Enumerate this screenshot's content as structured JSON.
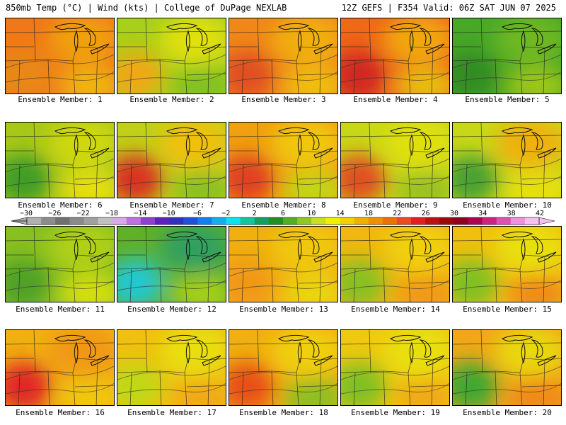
{
  "header": {
    "left": "850mb Temp (°C) | Wind (kts) | College of DuPage NEXLAB",
    "right": "12Z GEFS | F354 Valid: 06Z SAT JUN 07 2025"
  },
  "colorbar": {
    "labels": [
      "−30",
      "−26",
      "−22",
      "−18",
      "−14",
      "−10",
      "−6",
      "−2",
      "2",
      "6",
      "10",
      "14",
      "18",
      "22",
      "26",
      "30",
      "34",
      "38",
      "42"
    ],
    "colors": [
      "#b0b0b0",
      "#8c8c8c",
      "#707070",
      "#8a8a8a",
      "#a0a0a0",
      "#c0c0c0",
      "#d8a8e8",
      "#c070e0",
      "#9040d0",
      "#6020c0",
      "#3030c0",
      "#2050e0",
      "#1080f0",
      "#10b0f0",
      "#10e0f0",
      "#10c8a0",
      "#10a060",
      "#209020",
      "#50b020",
      "#90c820",
      "#c8e020",
      "#f0f000",
      "#f0d000",
      "#f0b000",
      "#f09000",
      "#f07000",
      "#f04820",
      "#e02020",
      "#c01010",
      "#a00808",
      "#900020",
      "#b00050",
      "#d02080",
      "#e050b0",
      "#f090e0",
      "#f8c0f0"
    ]
  },
  "members": [
    {
      "label": "Ensemble Member: 1",
      "colors": [
        "#f07818",
        "#f0a010",
        "#e88818",
        "#f0b810"
      ]
    },
    {
      "label": "Ensemble Member: 2",
      "colors": [
        "#a8d018",
        "#e0e010",
        "#f0a818",
        "#80c020"
      ]
    },
    {
      "label": "Ensemble Member: 3",
      "colors": [
        "#f08818",
        "#f0b010",
        "#e05020",
        "#f0c010"
      ]
    },
    {
      "label": "Ensemble Member: 4",
      "colors": [
        "#f06818",
        "#f0a810",
        "#d02820",
        "#e8c010"
      ]
    },
    {
      "label": "Ensemble Member: 5",
      "colors": [
        "#48a828",
        "#70b820",
        "#308c20",
        "#a0c818"
      ]
    },
    {
      "label": "Ensemble Member: 6",
      "colors": [
        "#a8c818",
        "#d0d810",
        "#409c28",
        "#e8e010"
      ]
    },
    {
      "label": "Ensemble Member: 7",
      "colors": [
        "#c0d018",
        "#f0c010",
        "#d83020",
        "#88c020"
      ]
    },
    {
      "label": "Ensemble Member: 8",
      "colors": [
        "#f0a010",
        "#f0c810",
        "#e04020",
        "#c0d818"
      ]
    },
    {
      "label": "Ensemble Member: 9",
      "colors": [
        "#c8d818",
        "#e0e010",
        "#e05020",
        "#98c020"
      ]
    },
    {
      "label": "Ensemble Member: 10",
      "colors": [
        "#c8d818",
        "#f0b010",
        "#48a030",
        "#e8e010"
      ]
    },
    {
      "label": "Ensemble Member: 11",
      "colors": [
        "#88c020",
        "#b0d018",
        "#50a028",
        "#d8e010"
      ]
    },
    {
      "label": "Ensemble Member: 12",
      "colors": [
        "#60b028",
        "#30a060",
        "#20c8d0",
        "#a8d018"
      ]
    },
    {
      "label": "Ensemble Member: 13",
      "colors": [
        "#f0b010",
        "#f0c810",
        "#f09818",
        "#e8d810"
      ]
    },
    {
      "label": "Ensemble Member: 14",
      "colors": [
        "#f0b810",
        "#f0d010",
        "#88c020",
        "#f09818"
      ]
    },
    {
      "label": "Ensemble Member: 15",
      "colors": [
        "#f0c010",
        "#e8e010",
        "#80c020",
        "#f08818"
      ]
    },
    {
      "label": "Ensemble Member: 16",
      "colors": [
        "#f0b010",
        "#f09818",
        "#e02828",
        "#f0c810"
      ]
    },
    {
      "label": "Ensemble Member: 17",
      "colors": [
        "#f0c010",
        "#e8e010",
        "#c0d818",
        "#f0a818"
      ]
    },
    {
      "label": "Ensemble Member: 18",
      "colors": [
        "#f0b010",
        "#f0d010",
        "#e85018",
        "#88c020"
      ]
    },
    {
      "label": "Ensemble Member: 19",
      "colors": [
        "#f0c810",
        "#e8e010",
        "#80c020",
        "#f0a818"
      ]
    },
    {
      "label": "Ensemble Member: 20",
      "colors": [
        "#f0a818",
        "#e8d810",
        "#40a830",
        "#f08818"
      ]
    }
  ]
}
